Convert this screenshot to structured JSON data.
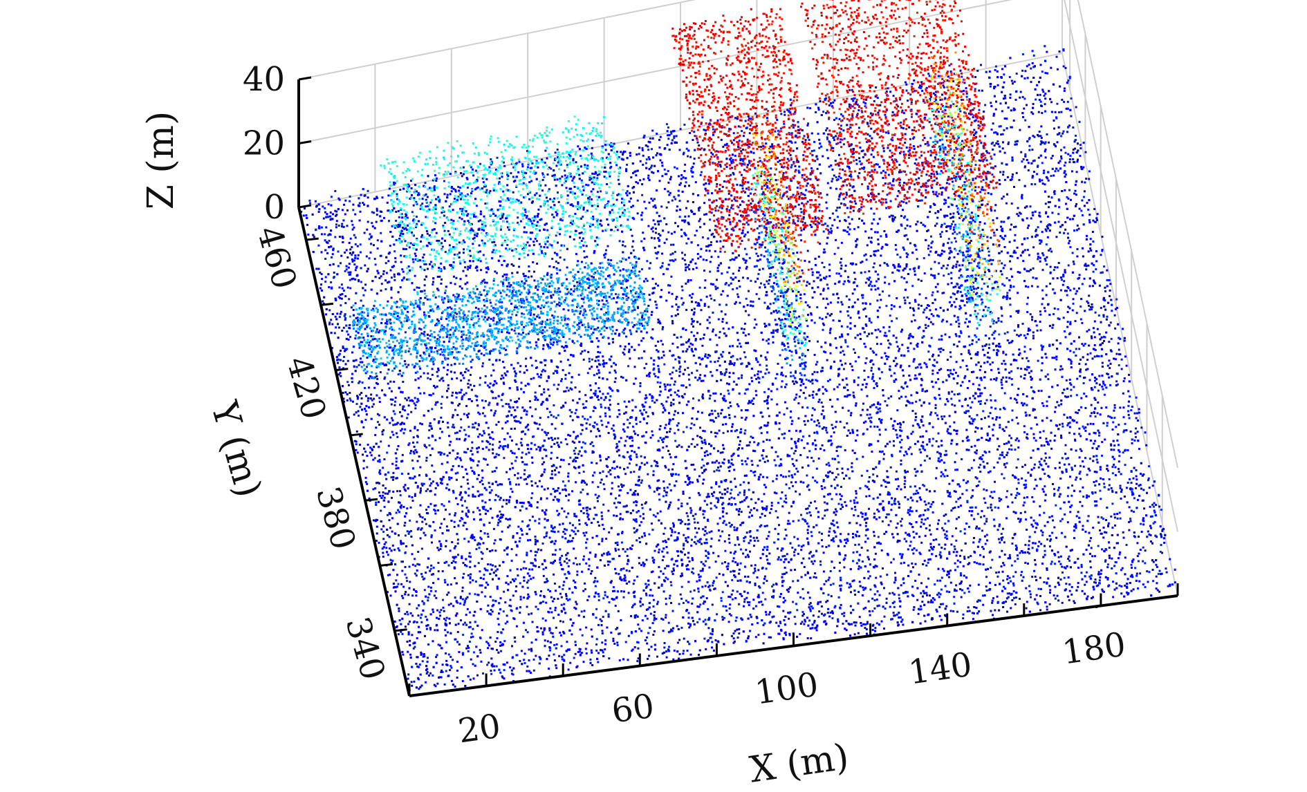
{
  "chart_data": {
    "type": "scatter",
    "subtype": "3d-point-cloud",
    "colormap": "jet",
    "color_encodes": "Z",
    "grid": true,
    "xlabel": "X (m)",
    "ylabel": "Y (m)",
    "zlabel": "Z (m)",
    "xlim": [
      0,
      200
    ],
    "ylim": [
      320,
      470
    ],
    "zlim": [
      0,
      40
    ],
    "xticks": [
      20,
      60,
      100,
      140,
      180
    ],
    "yticks": [
      340,
      380,
      420,
      460
    ],
    "zticks": [
      0,
      20,
      40
    ],
    "regions": [
      {
        "label": "ground",
        "x": [
          0,
          200
        ],
        "y": [
          320,
          470
        ],
        "z": [
          0,
          4
        ]
      },
      {
        "label": "long block north",
        "x": [
          20,
          80
        ],
        "y": [
          430,
          465
        ],
        "z": [
          13,
          17
        ]
      },
      {
        "label": "long block south",
        "x": [
          5,
          80
        ],
        "y": [
          408,
          428
        ],
        "z": [
          8,
          12
        ]
      },
      {
        "label": "tall roof west",
        "x": [
          96,
          125
        ],
        "y": [
          400,
          465
        ],
        "z": [
          36,
          40
        ]
      },
      {
        "label": "tall roof east",
        "x": [
          130,
          170
        ],
        "y": [
          405,
          465
        ],
        "z": [
          36,
          40
        ]
      },
      {
        "label": "facade west",
        "x": [
          112,
          118
        ],
        "y": [
          390,
          440
        ],
        "z": [
          0,
          38
        ]
      },
      {
        "label": "facade east",
        "x": [
          160,
          168
        ],
        "y": [
          390,
          450
        ],
        "z": [
          0,
          38
        ]
      }
    ]
  }
}
